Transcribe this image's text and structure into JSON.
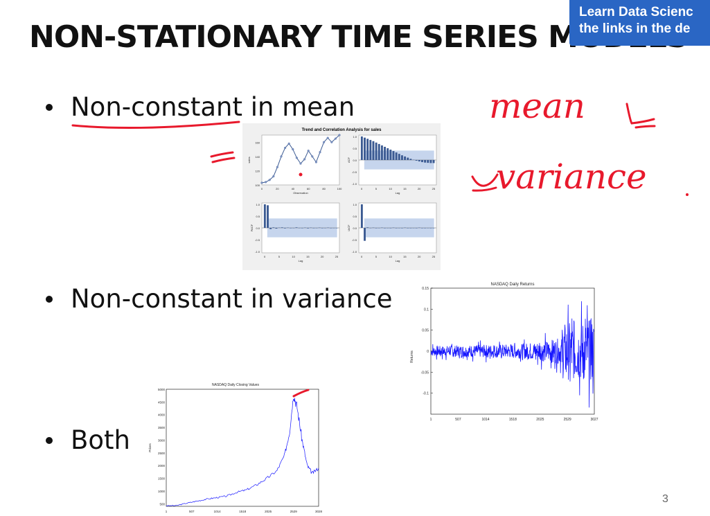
{
  "slide": {
    "title": "NON-STATIONARY TIME SERIES MODELS",
    "bullets": [
      "Non-constant in mean",
      "Non-constant in variance",
      "Both"
    ],
    "page_number": "3",
    "annotations": {
      "mean": "mean",
      "variance": "variance",
      "color": "#e8192c"
    }
  },
  "banner": {
    "line1": "Learn Data Scienc",
    "line2": "the links in the de",
    "bg": "#2a66c4"
  },
  "chart_data": [
    {
      "type": "line",
      "title": "Trend and Correlation Analysis for sales",
      "xlabel": "Observation",
      "ylabel": "sales",
      "xticks": [
        "0",
        "20",
        "40",
        "60",
        "80",
        "100"
      ],
      "yticks": [
        "100",
        "120",
        "140",
        "160"
      ],
      "x": [
        0,
        5,
        10,
        15,
        20,
        25,
        30,
        35,
        40,
        45,
        50,
        55,
        60,
        65,
        70,
        75,
        80,
        85,
        90,
        95,
        100
      ],
      "y": [
        103,
        104,
        107,
        112,
        125,
        140,
        152,
        158,
        150,
        138,
        130,
        136,
        148,
        140,
        132,
        146,
        160,
        166,
        160,
        165,
        170
      ],
      "xlim": [
        0,
        100
      ],
      "ylim": [
        100,
        170
      ]
    },
    {
      "type": "bar",
      "xlabel": "Lag",
      "ylabel": "ACF",
      "xticks": [
        "0",
        "5",
        "10",
        "15",
        "20",
        "25"
      ],
      "yticks": [
        "1.0",
        "0.5",
        "0.0",
        "-0.5",
        "-1.0"
      ],
      "values": [
        1.0,
        0.95,
        0.9,
        0.85,
        0.8,
        0.74,
        0.68,
        0.62,
        0.56,
        0.5,
        0.44,
        0.38,
        0.32,
        0.26,
        0.2,
        0.15,
        0.1,
        0.05,
        0.01,
        -0.03,
        -0.06,
        -0.09,
        -0.11,
        -0.12,
        -0.13,
        -0.13
      ],
      "ylim": [
        -1,
        1
      ]
    },
    {
      "type": "bar",
      "xlabel": "Lag",
      "ylabel": "PACF",
      "xticks": [
        "0",
        "5",
        "10",
        "15",
        "20",
        "25"
      ],
      "yticks": [
        "1.0",
        "0.5",
        "0.0",
        "-0.5",
        "-1.0"
      ],
      "values": [
        1.0,
        0.96,
        -0.05,
        0.02,
        -0.03,
        0.01,
        0.02,
        -0.02,
        0.01,
        0.0,
        -0.01,
        0.02,
        -0.01,
        0.0,
        0.01,
        -0.02,
        0.01,
        0.0,
        -0.01,
        0.01,
        0.0,
        -0.01,
        0.01,
        0.0,
        -0.01,
        0.0
      ],
      "ylim": [
        -1,
        1
      ]
    },
    {
      "type": "bar",
      "xlabel": "Lag",
      "ylabel": "IACF",
      "xticks": [
        "0",
        "5",
        "10",
        "15",
        "20",
        "25"
      ],
      "yticks": [
        "1.0",
        "0.5",
        "0.0",
        "-0.5",
        "-1.0"
      ],
      "values": [
        1.0,
        -0.55,
        0.02,
        -0.01,
        0.01,
        0.0,
        -0.01,
        0.01,
        0.0,
        -0.01,
        0.0,
        0.01,
        0.0,
        -0.01,
        0.0,
        0.01,
        0.0,
        0.0,
        -0.01,
        0.0,
        0.01,
        0.0,
        0.0,
        -0.01,
        0.0,
        0.0
      ],
      "ylim": [
        -1,
        1
      ]
    },
    {
      "type": "line",
      "title": "NASDAQ Daily Returns",
      "ylabel": "Returns",
      "xticks": [
        "1",
        "507",
        "1014",
        "1518",
        "2025",
        "2529",
        "3027"
      ],
      "yticks": [
        "0.15",
        "0.1",
        "0.05",
        "0",
        "-0.05",
        "-0.1"
      ],
      "xlim": [
        1,
        3027
      ],
      "ylim": [
        -0.15,
        0.15
      ]
    },
    {
      "type": "line",
      "title": "NASDAQ Daily Closing Values",
      "ylabel": "Prices",
      "xticks": [
        "1",
        "507",
        "1014",
        "1518",
        "2025",
        "2529",
        "3028"
      ],
      "yticks": [
        "5000",
        "4500",
        "4000",
        "3500",
        "3000",
        "2500",
        "2000",
        "1500",
        "1000",
        "500"
      ],
      "x": [
        1,
        200,
        400,
        600,
        800,
        1000,
        1200,
        1400,
        1600,
        1800,
        2000,
        2200,
        2350,
        2450,
        2529,
        2600,
        2700,
        2800,
        2900,
        3028
      ],
      "y": [
        420,
        430,
        520,
        600,
        680,
        740,
        800,
        950,
        1050,
        1250,
        1500,
        1800,
        2400,
        3300,
        4800,
        4300,
        3000,
        2000,
        1700,
        1900
      ],
      "xlim": [
        1,
        3028
      ],
      "ylim": [
        400,
        5000
      ]
    }
  ]
}
